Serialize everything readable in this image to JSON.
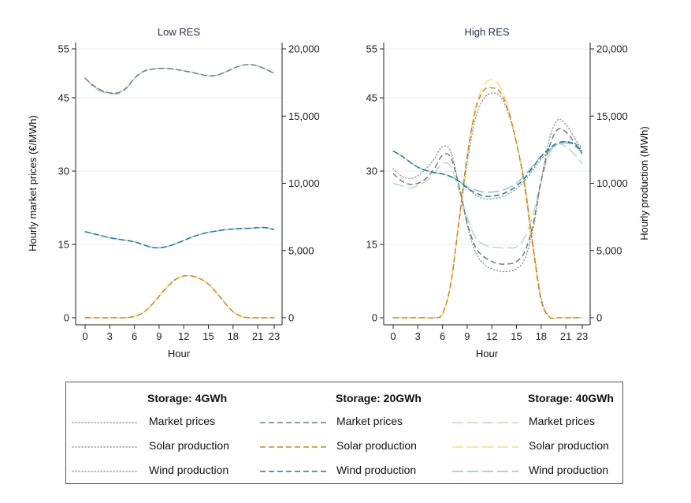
{
  "chart_data": [
    {
      "type": "line",
      "title": "Low RES",
      "xlabel": "Hour",
      "ylabel_left": "Hourly market prices (€/MWh)",
      "ylim_left": [
        0,
        55
      ],
      "yticks_left": [
        "0",
        "15",
        "30",
        "45",
        "55"
      ],
      "ylim_right": [
        0,
        20000
      ],
      "yticks_right": [
        "0",
        "5,000",
        "10,000",
        "15,000",
        "20,000"
      ],
      "xticks": [
        "0",
        "3",
        "6",
        "9",
        "12",
        "15",
        "18",
        "21",
        "23"
      ],
      "x": [
        0,
        1,
        2,
        3,
        4,
        5,
        6,
        7,
        8,
        9,
        10,
        11,
        12,
        13,
        14,
        15,
        16,
        17,
        18,
        19,
        20,
        21,
        22,
        23
      ],
      "series": [
        {
          "name": "Market prices",
          "group": "Storage: 4GWh",
          "axis": "left",
          "values": [
            49.0,
            47.5,
            46.5,
            46.0,
            46.0,
            47.0,
            49.0,
            50.3,
            50.8,
            51.0,
            51.0,
            50.8,
            50.5,
            50.2,
            49.8,
            49.5,
            49.6,
            50.2,
            51.0,
            51.6,
            51.8,
            51.5,
            50.8,
            50.0
          ]
        },
        {
          "name": "Solar production",
          "group": "Storage: 4GWh",
          "axis": "right",
          "values": [
            0,
            0,
            0,
            0,
            0,
            0,
            100,
            350,
            900,
            1600,
            2300,
            2850,
            3100,
            3100,
            2900,
            2500,
            1850,
            1100,
            450,
            100,
            0,
            0,
            0,
            0
          ]
        },
        {
          "name": "Wind production",
          "group": "Storage: 4GWh",
          "axis": "right",
          "values": [
            6400,
            6250,
            6100,
            5950,
            5850,
            5750,
            5650,
            5450,
            5250,
            5200,
            5300,
            5500,
            5750,
            6000,
            6200,
            6350,
            6450,
            6550,
            6600,
            6650,
            6650,
            6700,
            6700,
            6550
          ]
        },
        {
          "name": "Market prices",
          "group": "Storage: 20GWh",
          "axis": "left",
          "values": [
            49.0,
            47.5,
            46.5,
            46.0,
            46.0,
            47.0,
            49.0,
            50.3,
            50.8,
            51.0,
            51.0,
            50.8,
            50.5,
            50.2,
            49.8,
            49.5,
            49.6,
            50.2,
            51.0,
            51.6,
            51.8,
            51.5,
            50.8,
            50.0
          ]
        },
        {
          "name": "Solar production",
          "group": "Storage: 20GWh",
          "axis": "right",
          "values": [
            0,
            0,
            0,
            0,
            0,
            0,
            100,
            350,
            900,
            1600,
            2300,
            2850,
            3100,
            3100,
            2900,
            2500,
            1850,
            1100,
            450,
            100,
            0,
            0,
            0,
            0
          ]
        },
        {
          "name": "Wind production",
          "group": "Storage: 20GWh",
          "axis": "right",
          "values": [
            6400,
            6250,
            6100,
            5950,
            5850,
            5750,
            5650,
            5450,
            5250,
            5200,
            5300,
            5500,
            5750,
            6000,
            6200,
            6350,
            6450,
            6550,
            6600,
            6650,
            6650,
            6700,
            6700,
            6550
          ]
        },
        {
          "name": "Market prices",
          "group": "Storage: 40GWh",
          "axis": "left",
          "values": [
            49.0,
            47.3,
            46.2,
            45.8,
            45.8,
            46.8,
            48.9,
            50.3,
            50.8,
            51.0,
            51.0,
            50.8,
            50.5,
            50.2,
            49.8,
            49.5,
            49.6,
            50.2,
            51.0,
            51.6,
            51.8,
            51.5,
            50.8,
            50.0
          ]
        },
        {
          "name": "Solar production",
          "group": "Storage: 40GWh",
          "axis": "right",
          "values": [
            0,
            0,
            0,
            0,
            0,
            0,
            100,
            350,
            900,
            1600,
            2300,
            2850,
            3100,
            3100,
            2900,
            2500,
            1850,
            1100,
            450,
            100,
            0,
            0,
            0,
            0
          ]
        },
        {
          "name": "Wind production",
          "group": "Storage: 40GWh",
          "axis": "right",
          "values": [
            6400,
            6250,
            6100,
            5950,
            5850,
            5750,
            5650,
            5450,
            5250,
            5200,
            5300,
            5500,
            5750,
            6000,
            6200,
            6350,
            6450,
            6550,
            6600,
            6650,
            6650,
            6700,
            6700,
            6550
          ]
        }
      ]
    },
    {
      "type": "line",
      "title": "High RES",
      "xlabel": "Hour",
      "ylabel_right": "Hourly production (MWh)",
      "ylim_left": [
        0,
        55
      ],
      "yticks_left": [
        "0",
        "15",
        "30",
        "45",
        "55"
      ],
      "ylim_right": [
        0,
        20000
      ],
      "yticks_right": [
        "0",
        "5,000",
        "10,000",
        "15,000",
        "20,000"
      ],
      "xticks": [
        "0",
        "3",
        "6",
        "9",
        "12",
        "15",
        "18",
        "21",
        "23"
      ],
      "x": [
        0,
        1,
        2,
        3,
        4,
        5,
        6,
        7,
        8,
        9,
        10,
        11,
        12,
        13,
        14,
        15,
        16,
        17,
        18,
        19,
        20,
        21,
        22,
        23
      ],
      "series": [
        {
          "name": "Market prices",
          "group": "Storage: 4GWh",
          "axis": "left",
          "values": [
            30.5,
            29.0,
            28.5,
            29.0,
            30.5,
            32.5,
            35.0,
            34.0,
            27.0,
            19.0,
            13.5,
            11.0,
            10.0,
            9.5,
            9.5,
            10.0,
            12.0,
            18.0,
            28.0,
            36.5,
            40.5,
            39.5,
            37.0,
            34.0
          ]
        },
        {
          "name": "Solar production",
          "group": "Storage: 4GWh",
          "axis": "right",
          "values": [
            0,
            0,
            0,
            0,
            0,
            0,
            300,
            2500,
            7000,
            11500,
            14800,
            16300,
            16700,
            16500,
            15200,
            13000,
            10000,
            5500,
            1500,
            50,
            0,
            0,
            0,
            0
          ]
        },
        {
          "name": "Wind production",
          "group": "Storage: 4GWh",
          "axis": "right",
          "values": [
            12400,
            12050,
            11600,
            11200,
            10950,
            10800,
            10700,
            10500,
            10150,
            9650,
            9150,
            8850,
            8850,
            8950,
            9200,
            9600,
            10200,
            11000,
            11800,
            12400,
            12900,
            13100,
            13000,
            12700
          ]
        },
        {
          "name": "Market prices",
          "group": "Storage: 20GWh",
          "axis": "left",
          "values": [
            29.5,
            28.0,
            27.3,
            27.5,
            28.5,
            30.5,
            33.2,
            32.8,
            27.0,
            19.5,
            14.5,
            12.5,
            11.5,
            11.0,
            11.0,
            11.5,
            13.5,
            19.0,
            28.0,
            35.0,
            38.5,
            38.0,
            36.0,
            33.5
          ]
        },
        {
          "name": "Solar production",
          "group": "Storage: 20GWh",
          "axis": "right",
          "values": [
            0,
            0,
            0,
            0,
            0,
            0,
            300,
            2500,
            7200,
            12000,
            15400,
            16900,
            17100,
            16800,
            15400,
            13000,
            9800,
            5300,
            1300,
            50,
            0,
            0,
            0,
            0
          ]
        },
        {
          "name": "Wind production",
          "group": "Storage: 20GWh",
          "axis": "right",
          "values": [
            12400,
            12050,
            11600,
            11200,
            10950,
            10800,
            10700,
            10500,
            10150,
            9650,
            9300,
            9050,
            9050,
            9150,
            9400,
            9800,
            10400,
            11200,
            12000,
            12600,
            13000,
            13100,
            12900,
            12400
          ]
        },
        {
          "name": "Market prices",
          "group": "Storage: 40GWh",
          "axis": "left",
          "values": [
            27.5,
            27.0,
            26.5,
            27.0,
            28.0,
            29.5,
            31.5,
            31.0,
            26.0,
            20.5,
            16.5,
            15.0,
            14.5,
            14.3,
            14.3,
            14.5,
            16.5,
            21.0,
            28.0,
            33.5,
            35.5,
            35.0,
            33.5,
            31.5
          ]
        },
        {
          "name": "Solar production",
          "group": "Storage: 40GWh",
          "axis": "right",
          "values": [
            0,
            0,
            0,
            0,
            0,
            0,
            300,
            2500,
            7200,
            12000,
            15600,
            17300,
            17700,
            17200,
            15600,
            13000,
            9600,
            5100,
            1300,
            50,
            0,
            0,
            0,
            0
          ]
        },
        {
          "name": "Wind production",
          "group": "Storage: 40GWh",
          "axis": "right",
          "values": [
            12400,
            12050,
            11600,
            11200,
            10950,
            10800,
            10700,
            10500,
            10150,
            9750,
            9500,
            9350,
            9350,
            9450,
            9650,
            10000,
            10600,
            11300,
            12000,
            12500,
            12900,
            13000,
            12800,
            12300
          ]
        }
      ]
    }
  ],
  "legend": {
    "columns": [
      {
        "header": "Storage: 4GWh",
        "items": [
          "Market prices",
          "Solar production",
          "Wind production"
        ]
      },
      {
        "header": "Storage: 20GWh",
        "items": [
          "Market prices",
          "Solar production",
          "Wind production"
        ]
      },
      {
        "header": "Storage: 40GWh",
        "items": [
          "Market prices",
          "Solar production",
          "Wind production"
        ]
      }
    ]
  },
  "styles": {
    "Storage: 4GWh": {
      "dash": "dotted",
      "colors": {
        "Market prices": "#9a9a9a",
        "Solar production": "#9a9a9a",
        "Wind production": "#9a9a9a"
      }
    },
    "Storage: 20GWh": {
      "dash": "dashed",
      "colors": {
        "Market prices": "#6f7f7b",
        "Solar production": "#c88a1e",
        "Wind production": "#1f7a98"
      }
    },
    "Storage: 40GWh": {
      "dash": "longdash",
      "colors": {
        "Market prices": "#bcd9c2",
        "Solar production": "#f6dd84",
        "Wind production": "#8dc2d8"
      }
    }
  }
}
